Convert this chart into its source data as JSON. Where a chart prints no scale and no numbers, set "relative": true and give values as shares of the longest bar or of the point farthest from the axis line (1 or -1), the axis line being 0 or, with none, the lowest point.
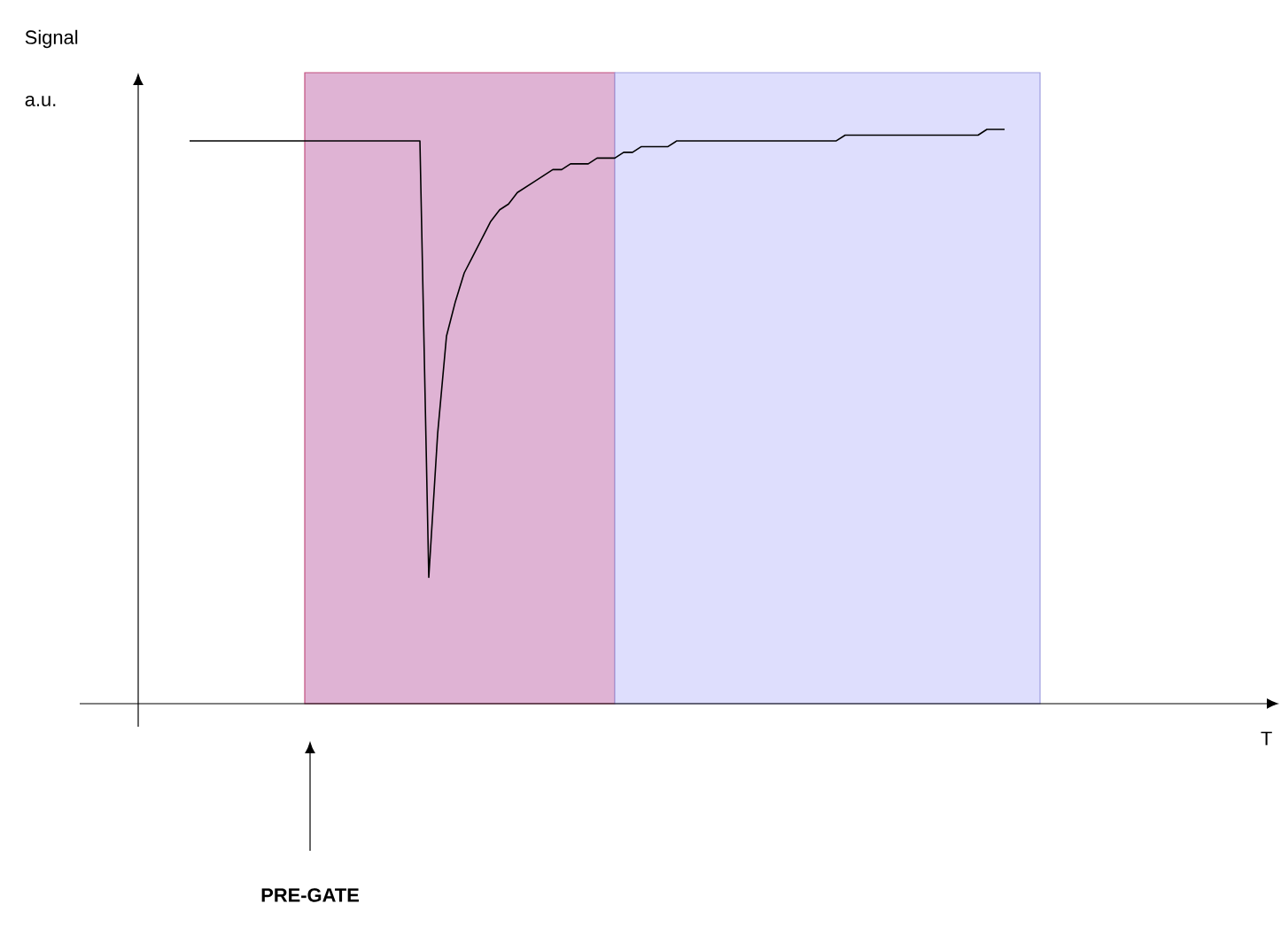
{
  "chart_data": {
    "type": "line",
    "relative": true,
    "categories": [
      null,
      null,
      null,
      null,
      null,
      null,
      null,
      null,
      null,
      null,
      null,
      null,
      null,
      null,
      null,
      null,
      null,
      null,
      null,
      null,
      null,
      null,
      null,
      null,
      null,
      null,
      null,
      null,
      null,
      null,
      null,
      null,
      null,
      null,
      null,
      null,
      null,
      null,
      null,
      null,
      null,
      null,
      null,
      null,
      null,
      null,
      null,
      null,
      null,
      null,
      null,
      null,
      null,
      null,
      null,
      null,
      null,
      null,
      null,
      null,
      null,
      null,
      null,
      null,
      null,
      null,
      null,
      null,
      null,
      null,
      null,
      null,
      null,
      null,
      null,
      null,
      null,
      null,
      null,
      null,
      null,
      null,
      null,
      null,
      null,
      null,
      null,
      null,
      null,
      null,
      null,
      null,
      null
    ],
    "series": [
      {
        "color": "#000000",
        "values": [
          0.98,
          0.98,
          0.98,
          0.98,
          0.98,
          0.98,
          0.98,
          0.98,
          0.98,
          0.98,
          0.98,
          0.98,
          0.98,
          0.98,
          0.98,
          0.98,
          0.98,
          0.98,
          0.98,
          0.98,
          0.98,
          0.98,
          0.98,
          0.98,
          0.98,
          0.98,
          0.98,
          0.22,
          0.47,
          0.64,
          0.7,
          0.75,
          0.78,
          0.81,
          0.84,
          0.86,
          0.87,
          0.89,
          0.9,
          0.91,
          0.92,
          0.93,
          0.93,
          0.94,
          0.94,
          0.94,
          0.95,
          0.95,
          0.95,
          0.96,
          0.96,
          0.97,
          0.97,
          0.97,
          0.97,
          0.98,
          0.98,
          0.98,
          0.98,
          0.98,
          0.98,
          0.98,
          0.98,
          0.98,
          0.98,
          0.98,
          0.98,
          0.98,
          0.98,
          0.98,
          0.98,
          0.98,
          0.98,
          0.98,
          0.99,
          0.99,
          0.99,
          0.99,
          0.99,
          0.99,
          0.99,
          0.99,
          0.99,
          0.99,
          0.99,
          0.99,
          0.99,
          0.99,
          0.99,
          0.99,
          1,
          1,
          1
        ]
      }
    ],
    "annotations": [
      "Signal",
      "a.u.",
      "T",
      "PRE-GATE"
    ]
  }
}
